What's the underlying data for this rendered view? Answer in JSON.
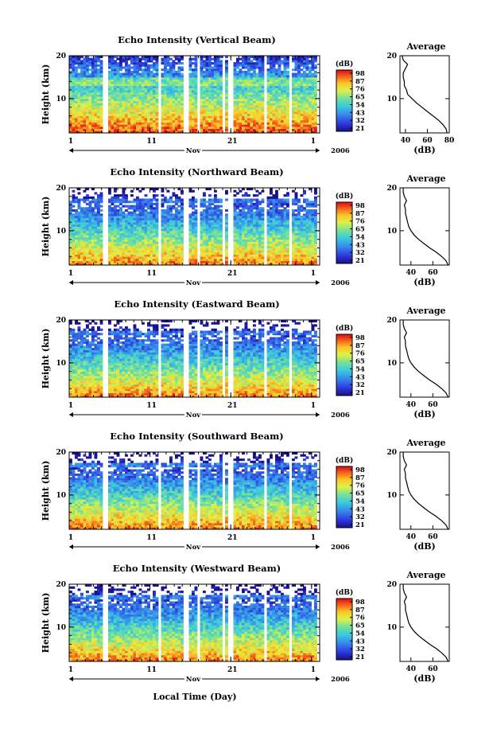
{
  "figure": {
    "xaxis_label": "Local Time (Day)",
    "month_label": "Nov",
    "year_label": "2006"
  },
  "chart_data": [
    {
      "type": "heatmap",
      "title": "Echo Intensity (Vertical Beam)",
      "ylabel": "Height (km)",
      "x_ticks": [
        "1",
        "11",
        "21",
        "1"
      ],
      "y_ticks": [
        "10",
        "20"
      ],
      "ylim": [
        2,
        20
      ],
      "colorbar": {
        "label": "(dB)",
        "ticks": [
          "98",
          "87",
          "76",
          "65",
          "54",
          "43",
          "32",
          "21"
        ]
      },
      "gap_days": [
        4.5,
        11.2,
        14.5,
        16.0,
        19.2,
        20.0,
        24.3,
        27.5,
        31.0
      ],
      "average_profile": {
        "title": "Average",
        "xlabel": "(dB)",
        "x_ticks": [
          "40",
          "60",
          "80"
        ],
        "xlim": [
          35,
          80
        ],
        "y_ticks": [
          "10",
          "20"
        ],
        "ylim": [
          2,
          20
        ],
        "heights_km": [
          2,
          3,
          4,
          5,
          6,
          7,
          8,
          9,
          10,
          11,
          12,
          13,
          14,
          15,
          16,
          17,
          18,
          19,
          20
        ],
        "db": [
          78,
          77,
          74,
          70,
          65,
          60,
          55,
          50,
          46,
          42,
          41,
          39,
          39,
          38,
          38,
          40,
          42,
          38,
          37
        ]
      }
    },
    {
      "type": "heatmap",
      "title": "Echo Intensity (Northward Beam)",
      "ylabel": "Height (km)",
      "x_ticks": [
        "1",
        "11",
        "21",
        "1"
      ],
      "y_ticks": [
        "10",
        "20"
      ],
      "ylim": [
        2,
        20
      ],
      "colorbar": {
        "label": "(dB)",
        "ticks": [
          "98",
          "87",
          "76",
          "65",
          "54",
          "43",
          "32",
          "21"
        ]
      },
      "gap_days": [
        4.5,
        11.2,
        14.5,
        16.0,
        19.2,
        20.0,
        24.3,
        27.5,
        31.0
      ],
      "average_profile": {
        "title": "Average",
        "xlabel": "(dB)",
        "x_ticks": [
          "40",
          "60"
        ],
        "xlim": [
          30,
          75
        ],
        "y_ticks": [
          "10",
          "20"
        ],
        "ylim": [
          2,
          20
        ],
        "heights_km": [
          2,
          3,
          4,
          5,
          6,
          7,
          8,
          9,
          10,
          11,
          12,
          13,
          14,
          15,
          16,
          17,
          18,
          19,
          20
        ],
        "db": [
          74,
          72,
          68,
          63,
          57,
          52,
          47,
          43,
          40,
          38,
          37,
          36,
          35,
          35,
          34,
          36,
          34,
          33,
          33
        ]
      }
    },
    {
      "type": "heatmap",
      "title": "Echo Intensity (Eastward Beam)",
      "ylabel": "Height (km)",
      "x_ticks": [
        "1",
        "11",
        "21",
        "1"
      ],
      "y_ticks": [
        "10",
        "20"
      ],
      "ylim": [
        2,
        20
      ],
      "colorbar": {
        "label": "(dB)",
        "ticks": [
          "98",
          "87",
          "76",
          "65",
          "54",
          "43",
          "32",
          "21"
        ]
      },
      "gap_days": [
        4.5,
        11.2,
        14.5,
        16.0,
        19.2,
        20.0,
        24.3,
        27.5,
        31.0
      ],
      "average_profile": {
        "title": "Average",
        "xlabel": "(dB)",
        "x_ticks": [
          "40",
          "60"
        ],
        "xlim": [
          30,
          75
        ],
        "y_ticks": [
          "10",
          "20"
        ],
        "ylim": [
          2,
          20
        ],
        "heights_km": [
          2,
          3,
          4,
          5,
          6,
          7,
          8,
          9,
          10,
          11,
          12,
          13,
          14,
          15,
          16,
          17,
          18,
          19,
          20
        ],
        "db": [
          74,
          72,
          68,
          63,
          57,
          52,
          47,
          43,
          40,
          38,
          37,
          36,
          35,
          35,
          34,
          36,
          34,
          33,
          33
        ]
      }
    },
    {
      "type": "heatmap",
      "title": "Echo Intensity (Southward Beam)",
      "ylabel": "Height (km)",
      "x_ticks": [
        "1",
        "11",
        "21",
        "1"
      ],
      "y_ticks": [
        "10",
        "20"
      ],
      "ylim": [
        2,
        20
      ],
      "colorbar": {
        "label": "(dB)",
        "ticks": [
          "98",
          "87",
          "76",
          "65",
          "54",
          "43",
          "32",
          "21"
        ]
      },
      "gap_days": [
        4.5,
        11.2,
        14.5,
        16.0,
        19.2,
        20.0,
        24.3,
        27.5,
        31.0
      ],
      "average_profile": {
        "title": "Average",
        "xlabel": "(dB)",
        "x_ticks": [
          "40",
          "60"
        ],
        "xlim": [
          30,
          75
        ],
        "y_ticks": [
          "10",
          "20"
        ],
        "ylim": [
          2,
          20
        ],
        "heights_km": [
          2,
          3,
          4,
          5,
          6,
          7,
          8,
          9,
          10,
          11,
          12,
          13,
          14,
          15,
          16,
          17,
          18,
          19,
          20
        ],
        "db": [
          74,
          72,
          68,
          63,
          57,
          52,
          47,
          43,
          40,
          38,
          37,
          36,
          35,
          35,
          34,
          36,
          34,
          33,
          33
        ]
      }
    },
    {
      "type": "heatmap",
      "title": "Echo Intensity (Westward Beam)",
      "ylabel": "Height (km)",
      "x_ticks": [
        "1",
        "11",
        "21",
        "1"
      ],
      "y_ticks": [
        "10",
        "20"
      ],
      "ylim": [
        2,
        20
      ],
      "colorbar": {
        "label": "(dB)",
        "ticks": [
          "98",
          "87",
          "76",
          "65",
          "54",
          "43",
          "32",
          "21"
        ]
      },
      "gap_days": [
        4.5,
        11.2,
        14.5,
        16.0,
        19.2,
        20.0,
        24.3,
        27.5,
        31.0
      ],
      "average_profile": {
        "title": "Average",
        "xlabel": "(dB)",
        "x_ticks": [
          "40",
          "60"
        ],
        "xlim": [
          30,
          75
        ],
        "y_ticks": [
          "10",
          "20"
        ],
        "ylim": [
          2,
          20
        ],
        "heights_km": [
          2,
          3,
          4,
          5,
          6,
          7,
          8,
          9,
          10,
          11,
          12,
          13,
          14,
          15,
          16,
          17,
          18,
          19,
          20
        ],
        "db": [
          74,
          72,
          68,
          63,
          57,
          52,
          47,
          43,
          40,
          38,
          37,
          36,
          35,
          35,
          34,
          36,
          34,
          33,
          33
        ]
      }
    }
  ]
}
